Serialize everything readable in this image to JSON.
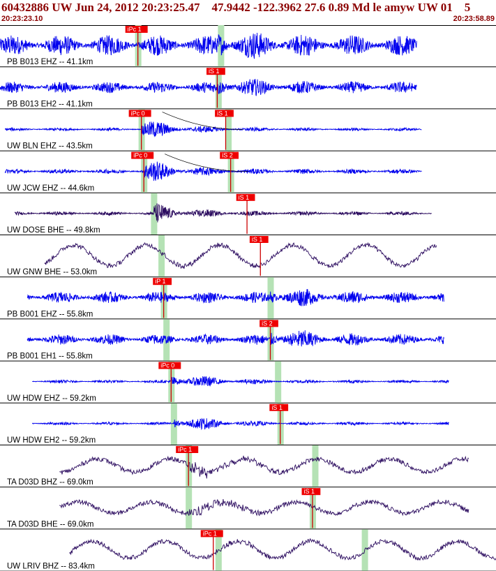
{
  "header": {
    "title": "60432886 UW Jun 24, 2012 20:23:25.47    47.9442 -122.3962 27.6 0.89 Md le amyw UW 01    5",
    "start_time": "20:23:23.10",
    "end_time": "20:23:58.89"
  },
  "colors": {
    "trace_blue": "#0000ee",
    "trace_purple": "#2a0a5e",
    "pick_box": "#ee0000",
    "pick_line": "#cc0000",
    "window": "#b5e2b5",
    "text_dark_red": "#8b0000"
  },
  "chart_data": {
    "type": "seismogram-record-section",
    "time_range": [
      "20:23:23.10",
      "20:23:58.89"
    ],
    "traces": [
      {
        "label": "PB B013 EHZ -- 41.1km",
        "color": "blue",
        "amp": 0.55,
        "kind": "hf",
        "start": 0.0,
        "end": 0.84,
        "p_pick": {
          "label": "iPc 1",
          "t": 0.278
        },
        "s_pick": null,
        "arrival": 0.44,
        "burst": 2.0,
        "windows": [
          0.278,
          0.445
        ],
        "theory_curve": false
      },
      {
        "label": "PB B013 EH2 -- 41.1km",
        "color": "blue",
        "amp": 0.3,
        "kind": "hf",
        "start": 0.0,
        "end": 0.84,
        "p_pick": null,
        "s_pick": {
          "label": "iS 1",
          "t": 0.438
        },
        "arrival": 0.44,
        "burst": 2.5,
        "windows": [
          0.44
        ],
        "theory_curve": false
      },
      {
        "label": "UW BLN EHZ -- 43.5km",
        "color": "blue",
        "amp": 0.08,
        "kind": "hf",
        "start": 0.01,
        "end": 0.85,
        "p_pick": {
          "label": "iPc 0",
          "t": 0.285
        },
        "s_pick": {
          "label": "iS 1",
          "t": 0.455
        },
        "arrival": 0.285,
        "burst": 8.0,
        "windows": [
          0.285,
          0.46
        ],
        "theory_curve": true
      },
      {
        "label": "UW JCW EHZ -- 44.6km",
        "color": "blue",
        "amp": 0.12,
        "kind": "hf",
        "start": 0.01,
        "end": 0.85,
        "p_pick": {
          "label": "iPc 0",
          "t": 0.29
        },
        "s_pick": {
          "label": "iS 2",
          "t": 0.465
        },
        "arrival": 0.29,
        "burst": 6.0,
        "windows": [
          0.29,
          0.465
        ],
        "theory_curve": true
      },
      {
        "label": "UW DOSE BHE -- 49.8km",
        "color": "purple",
        "amp": 0.1,
        "kind": "hf",
        "start": 0.03,
        "end": 0.87,
        "p_pick": null,
        "s_pick": {
          "label": "iS 1",
          "t": 0.498
        },
        "arrival": 0.31,
        "burst": 6.0,
        "windows": [
          0.31
        ],
        "theory_curve": false
      },
      {
        "label": "UW GNW BHE -- 53.0km",
        "color": "purple",
        "amp": 0.55,
        "kind": "lf",
        "start": 0.09,
        "end": 0.88,
        "p_pick": null,
        "s_pick": {
          "label": "iS 1",
          "t": 0.525
        },
        "arrival": 0.325,
        "burst": 1.2,
        "windows": [
          0.325
        ],
        "theory_curve": false
      },
      {
        "label": "PB B001 EHZ -- 55.8km",
        "color": "blue",
        "amp": 0.3,
        "kind": "hf",
        "start": 0.055,
        "end": 0.895,
        "p_pick": {
          "label": "iP 1",
          "t": 0.33
        },
        "s_pick": null,
        "arrival": 0.545,
        "burst": 2.5,
        "windows": [
          0.33,
          0.545
        ],
        "theory_curve": false
      },
      {
        "label": "PB B001 EH1 -- 55.8km",
        "color": "blue",
        "amp": 0.28,
        "kind": "hf",
        "start": 0.055,
        "end": 0.895,
        "p_pick": null,
        "s_pick": {
          "label": "iS 2",
          "t": 0.545
        },
        "arrival": 0.545,
        "burst": 3.0,
        "windows": [
          0.335,
          0.545
        ],
        "theory_curve": false
      },
      {
        "label": "UW HDW EHZ -- 59.2km",
        "color": "blue",
        "amp": 0.08,
        "kind": "hf",
        "start": 0.065,
        "end": 0.905,
        "p_pick": {
          "label": "iPc 0",
          "t": 0.345
        },
        "s_pick": null,
        "arrival": 0.345,
        "burst": 8.0,
        "windows": [
          0.345,
          0.56
        ],
        "theory_curve": true
      },
      {
        "label": "UW HDW EH2 -- 59.2km",
        "color": "blue",
        "amp": 0.08,
        "kind": "hf",
        "start": 0.065,
        "end": 0.905,
        "p_pick": null,
        "s_pick": {
          "label": "iS 1",
          "t": 0.565
        },
        "arrival": 0.35,
        "burst": 8.0,
        "windows": [
          0.35,
          0.565
        ],
        "theory_curve": false
      },
      {
        "label": "TA D03D BHZ -- 69.0km",
        "color": "purple",
        "amp": 0.35,
        "kind": "lf",
        "start": 0.12,
        "end": 0.945,
        "p_pick": {
          "label": "iPc 1",
          "t": 0.38
        },
        "s_pick": null,
        "arrival": 0.38,
        "burst": 2.0,
        "windows": [
          0.38,
          0.635
        ],
        "theory_curve": false
      },
      {
        "label": "TA D03D BHE -- 69.0km",
        "color": "purple",
        "amp": 0.3,
        "kind": "lf",
        "start": 0.12,
        "end": 0.945,
        "p_pick": null,
        "s_pick": {
          "label": "iS 1",
          "t": 0.63
        },
        "arrival": 0.38,
        "burst": 2.0,
        "windows": [
          0.38,
          0.63
        ],
        "theory_curve": false
      },
      {
        "label": "UW LRIV BHZ -- 83.4km",
        "color": "purple",
        "amp": 0.45,
        "kind": "lf",
        "start": 0.14,
        "end": 1.0,
        "p_pick": {
          "label": "iPc 1",
          "t": 0.43
        },
        "s_pick": null,
        "arrival": 0.43,
        "burst": 1.3,
        "windows": [
          0.44,
          0.735
        ],
        "theory_curve": false
      }
    ]
  }
}
